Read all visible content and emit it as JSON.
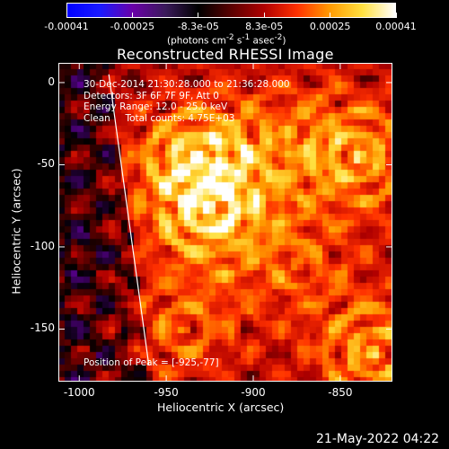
{
  "colorbar": {
    "tick_labels": [
      "-0.00041",
      "-0.00025",
      "-8.3e-05",
      "8.3e-05",
      "0.00025",
      "0.00041"
    ],
    "unit_label_html": "(photons cm<sup>-2</sup> s<sup>-1</sup> asec<sup>-2</sup>)",
    "colors": [
      "#0000ff",
      "#1a1aff",
      "#6a00a8",
      "#3a1a5a",
      "#000000",
      "#5a0000",
      "#b00000",
      "#ff3000",
      "#ff9a00",
      "#ffe040",
      "#ffffff"
    ]
  },
  "plot": {
    "title": "Reconstructed RHESSI Image",
    "annotations": [
      "30-Dec-2014 21:30:28.000 to 21:36:28.000",
      "Detectors: 3F 6F 7F 9F, Att 0",
      "Energy Range: 12.0 - 25.0 keV",
      "Clean     Total counts: 4.75E+03"
    ],
    "peak_label": "Position of Peak = [-925,-77]",
    "xlabel": "Heliocentric X (arcsec)",
    "ylabel": "Heliocentric Y (arcsec)",
    "x_ticks": [
      "-1000",
      "-950",
      "-900",
      "-850"
    ],
    "y_ticks": [
      "0",
      "-50",
      "-100",
      "-150"
    ]
  },
  "chart_data": {
    "type": "heatmap",
    "title": "Reconstructed RHESSI Image",
    "xlabel": "Heliocentric X (arcsec)",
    "ylabel": "Heliocentric Y (arcsec)",
    "xlim": [
      -1012,
      -820
    ],
    "ylim": [
      -182,
      12
    ],
    "x_ticks": [
      -1000,
      -950,
      -900,
      -850
    ],
    "y_ticks": [
      0,
      -50,
      -100,
      -150
    ],
    "colorbar_range": [
      -0.00041,
      0.00041
    ],
    "colorbar_ticks": [
      -0.00041,
      -0.00025,
      -8.3e-05,
      8.3e-05,
      0.00025,
      0.00041
    ],
    "colormap": [
      "#0000ff",
      "#6a00a8",
      "#000000",
      "#b00000",
      "#ff3000",
      "#ff9a00",
      "#ffe040",
      "#ffffff"
    ],
    "peak_position": [
      -925,
      -77
    ],
    "sources": [
      {
        "x": -925,
        "y": -77,
        "relative_intensity": 1.0
      },
      {
        "x": -932,
        "y": -45,
        "relative_intensity": 0.85
      },
      {
        "x": -840,
        "y": -45,
        "relative_intensity": 0.8
      },
      {
        "x": -830,
        "y": -165,
        "relative_intensity": 0.8
      },
      {
        "x": -940,
        "y": -150,
        "relative_intensity": 0.55
      },
      {
        "x": -875,
        "y": -110,
        "relative_intensity": 0.45
      },
      {
        "x": -880,
        "y": -30,
        "relative_intensity": 0.4
      }
    ],
    "limb_line": [
      [
        -983,
        5
      ],
      [
        -960,
        -172
      ]
    ]
  },
  "footer": {
    "timestamp": "21-May-2022 04:22"
  }
}
